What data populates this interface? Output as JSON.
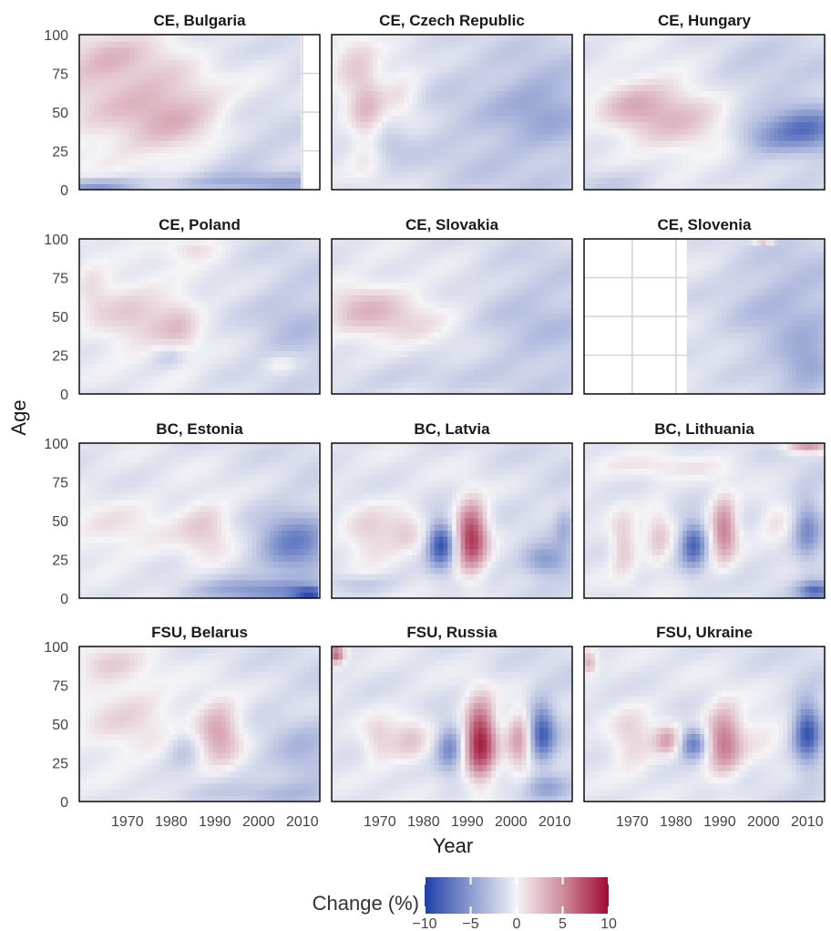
{
  "chart_data": {
    "type": "heatmap",
    "xlabel": "Year",
    "ylabel": "Age",
    "x_ticks": [
      "1970",
      "1980",
      "1990",
      "2000",
      "2010"
    ],
    "y_ticks": [
      "0",
      "25",
      "50",
      "75",
      "100"
    ],
    "xlim": [
      1959,
      2014
    ],
    "ylim": [
      0,
      100
    ],
    "legend": {
      "title": "Change (%)",
      "ticks": [
        "−10",
        "−5",
        "0",
        "5",
        "10"
      ],
      "range": [
        -10,
        10
      ],
      "colors": {
        "low": "#1f3fa8",
        "mid": "#f4f4f6",
        "high": "#9e0a32"
      }
    },
    "panels": [
      {
        "title": "CE, Bulgaria",
        "years": [
          1959,
          2009
        ],
        "features": [
          {
            "year": 1972,
            "age": 60,
            "dy": 25,
            "da": 40,
            "value": 2.5
          },
          {
            "year": 1982,
            "age": 45,
            "dy": 12,
            "da": 25,
            "value": 2
          },
          {
            "year": 1965,
            "age": 85,
            "dy": 10,
            "da": 15,
            "value": 2
          },
          {
            "year": 1995,
            "age": 30,
            "dy": 12,
            "da": 30,
            "value": -1.5
          },
          {
            "year": 2002,
            "age": 5,
            "dy": 30,
            "da": 6,
            "value": -2.5
          },
          {
            "year": 1962,
            "age": 2,
            "dy": 10,
            "da": 5,
            "value": -4
          },
          {
            "year": 1990,
            "age": 85,
            "dy": 8,
            "da": 15,
            "value": -1
          }
        ]
      },
      {
        "title": "CE, Czech Republic",
        "years": [
          1959,
          2014
        ],
        "features": [
          {
            "year": 1967,
            "age": 50,
            "dy": 4,
            "da": 35,
            "value": 3
          },
          {
            "year": 1975,
            "age": 62,
            "dy": 5,
            "da": 20,
            "value": 2
          },
          {
            "year": 1963,
            "age": 80,
            "dy": 5,
            "da": 20,
            "value": 2
          },
          {
            "year": 1995,
            "age": 40,
            "dy": 20,
            "da": 60,
            "value": -1.5
          },
          {
            "year": 2008,
            "age": 55,
            "dy": 10,
            "da": 25,
            "value": -2
          },
          {
            "year": 1972,
            "age": 30,
            "dy": 5,
            "da": 12,
            "value": -1.5
          }
        ]
      },
      {
        "title": "CE, Hungary",
        "years": [
          1959,
          2014
        ],
        "features": [
          {
            "year": 1980,
            "age": 50,
            "dy": 14,
            "da": 28,
            "value": 3
          },
          {
            "year": 1970,
            "age": 55,
            "dy": 8,
            "da": 15,
            "value": 2
          },
          {
            "year": 2010,
            "age": 40,
            "dy": 8,
            "da": 15,
            "value": -5
          },
          {
            "year": 2000,
            "age": 35,
            "dy": 8,
            "da": 12,
            "value": -3
          },
          {
            "year": 1995,
            "age": 75,
            "dy": 15,
            "da": 20,
            "value": -1.5
          },
          {
            "year": 1965,
            "age": 5,
            "dy": 10,
            "da": 10,
            "value": -1.5
          }
        ]
      },
      {
        "title": "CE, Poland",
        "years": [
          1959,
          2014
        ],
        "features": [
          {
            "year": 1972,
            "age": 50,
            "dy": 10,
            "da": 25,
            "value": 2.5
          },
          {
            "year": 1982,
            "age": 40,
            "dy": 5,
            "da": 25,
            "value": 2
          },
          {
            "year": 1962,
            "age": 70,
            "dy": 4,
            "da": 20,
            "value": 1.5
          },
          {
            "year": 1980,
            "age": 25,
            "dy": 4,
            "da": 8,
            "value": -2
          },
          {
            "year": 2008,
            "age": 45,
            "dy": 10,
            "da": 30,
            "value": -1.5
          },
          {
            "year": 1985,
            "age": 95,
            "dy": 6,
            "da": 8,
            "value": 2
          },
          {
            "year": 2005,
            "age": 20,
            "dy": 4,
            "da": 6,
            "value": 1.5
          }
        ]
      },
      {
        "title": "CE, Slovakia",
        "years": [
          1959,
          2014
        ],
        "features": [
          {
            "year": 1972,
            "age": 50,
            "dy": 14,
            "da": 18,
            "value": 2.5
          },
          {
            "year": 1965,
            "age": 60,
            "dy": 8,
            "da": 15,
            "value": 1.5
          },
          {
            "year": 2005,
            "age": 45,
            "dy": 15,
            "da": 40,
            "value": -1.5
          },
          {
            "year": 1975,
            "age": 10,
            "dy": 20,
            "da": 10,
            "value": -1
          }
        ]
      },
      {
        "title": "CE, Slovenia",
        "years": [
          1983,
          2014
        ],
        "features": [
          {
            "year": 2005,
            "age": 55,
            "dy": 15,
            "da": 40,
            "value": -2
          },
          {
            "year": 2010,
            "age": 20,
            "dy": 6,
            "da": 15,
            "value": -2.5
          },
          {
            "year": 2000,
            "age": 99,
            "dy": 2,
            "da": 2,
            "value": 5
          }
        ]
      },
      {
        "title": "BC, Estonia",
        "years": [
          1959,
          2013
        ],
        "features": [
          {
            "year": 1968,
            "age": 45,
            "dy": 14,
            "da": 20,
            "value": 1.5
          },
          {
            "year": 1988,
            "age": 45,
            "dy": 6,
            "da": 20,
            "value": 2.5
          },
          {
            "year": 2008,
            "age": 35,
            "dy": 8,
            "da": 20,
            "value": -5
          },
          {
            "year": 2000,
            "age": 5,
            "dy": 15,
            "da": 8,
            "value": -4
          },
          {
            "year": 2012,
            "age": 3,
            "dy": 4,
            "da": 4,
            "value": -6
          }
        ]
      },
      {
        "title": "BC, Latvia",
        "years": [
          1959,
          2013
        ],
        "features": [
          {
            "year": 1984,
            "age": 35,
            "dy": 3,
            "da": 15,
            "value": -8
          },
          {
            "year": 1991,
            "age": 40,
            "dy": 3.5,
            "da": 22,
            "value": 9
          },
          {
            "year": 1968,
            "age": 40,
            "dy": 6,
            "da": 20,
            "value": 2.5
          },
          {
            "year": 1976,
            "age": 45,
            "dy": 4,
            "da": 15,
            "value": 2
          },
          {
            "year": 2008,
            "age": 25,
            "dy": 5,
            "da": 10,
            "value": -4
          },
          {
            "year": 2012,
            "age": 45,
            "dy": 2,
            "da": 15,
            "value": -2
          },
          {
            "year": 1965,
            "age": 10,
            "dy": 8,
            "da": 6,
            "value": -2
          }
        ]
      },
      {
        "title": "BC, Lithuania",
        "years": [
          1959,
          2014
        ],
        "features": [
          {
            "year": 1984,
            "age": 35,
            "dy": 3,
            "da": 15,
            "value": -7
          },
          {
            "year": 1991,
            "age": 45,
            "dy": 3,
            "da": 20,
            "value": 6
          },
          {
            "year": 1968,
            "age": 35,
            "dy": 3,
            "da": 20,
            "value": 3
          },
          {
            "year": 1976,
            "age": 40,
            "dy": 3,
            "da": 20,
            "value": 2.5
          },
          {
            "year": 2010,
            "age": 45,
            "dy": 3,
            "da": 20,
            "value": -4
          },
          {
            "year": 2012,
            "age": 5,
            "dy": 4,
            "da": 6,
            "value": -6
          },
          {
            "year": 1975,
            "age": 85,
            "dy": 18,
            "da": 8,
            "value": 1.5
          },
          {
            "year": 2010,
            "age": 98,
            "dy": 5,
            "da": 4,
            "value": 5
          },
          {
            "year": 2003,
            "age": 50,
            "dy": 4,
            "da": 15,
            "value": 2
          }
        ]
      },
      {
        "title": "FSU, Belarus",
        "years": [
          1959,
          2014
        ],
        "features": [
          {
            "year": 1991,
            "age": 45,
            "dy": 5,
            "da": 20,
            "value": 4.5
          },
          {
            "year": 1970,
            "age": 55,
            "dy": 12,
            "da": 30,
            "value": 2
          },
          {
            "year": 1983,
            "age": 35,
            "dy": 4,
            "da": 12,
            "value": -2
          },
          {
            "year": 2010,
            "age": 30,
            "dy": 8,
            "da": 20,
            "value": -2
          },
          {
            "year": 1965,
            "age": 90,
            "dy": 8,
            "da": 12,
            "value": 2
          },
          {
            "year": 2000,
            "age": 5,
            "dy": 20,
            "da": 8,
            "value": -1.5
          }
        ]
      },
      {
        "title": "FSU, Russia",
        "years": [
          1959,
          2014
        ],
        "features": [
          {
            "year": 1993,
            "age": 40,
            "dy": 3.5,
            "da": 25,
            "value": 10
          },
          {
            "year": 1986,
            "age": 35,
            "dy": 3,
            "da": 15,
            "value": -5
          },
          {
            "year": 2007,
            "age": 45,
            "dy": 3,
            "da": 18,
            "value": -7
          },
          {
            "year": 2002,
            "age": 40,
            "dy": 3,
            "da": 20,
            "value": 5
          },
          {
            "year": 1970,
            "age": 40,
            "dy": 4,
            "da": 15,
            "value": 2.5
          },
          {
            "year": 1977,
            "age": 40,
            "dy": 4,
            "da": 15,
            "value": 2.5
          },
          {
            "year": 1960,
            "age": 95,
            "dy": 2,
            "da": 6,
            "value": 7
          },
          {
            "year": 2008,
            "age": 10,
            "dy": 5,
            "da": 8,
            "value": -3
          }
        ]
      },
      {
        "title": "FSU, Ukraine",
        "years": [
          1959,
          2014
        ],
        "features": [
          {
            "year": 1991,
            "age": 40,
            "dy": 4,
            "da": 22,
            "value": 6
          },
          {
            "year": 1984,
            "age": 38,
            "dy": 3,
            "da": 10,
            "value": -6
          },
          {
            "year": 1978,
            "age": 40,
            "dy": 3,
            "da": 10,
            "value": 4
          },
          {
            "year": 2010,
            "age": 45,
            "dy": 3,
            "da": 20,
            "value": -7
          },
          {
            "year": 1970,
            "age": 40,
            "dy": 5,
            "da": 20,
            "value": 2.5
          },
          {
            "year": 1960,
            "age": 90,
            "dy": 2,
            "da": 8,
            "value": 4
          },
          {
            "year": 2000,
            "age": 45,
            "dy": 6,
            "da": 20,
            "value": 1.5
          }
        ]
      }
    ]
  }
}
